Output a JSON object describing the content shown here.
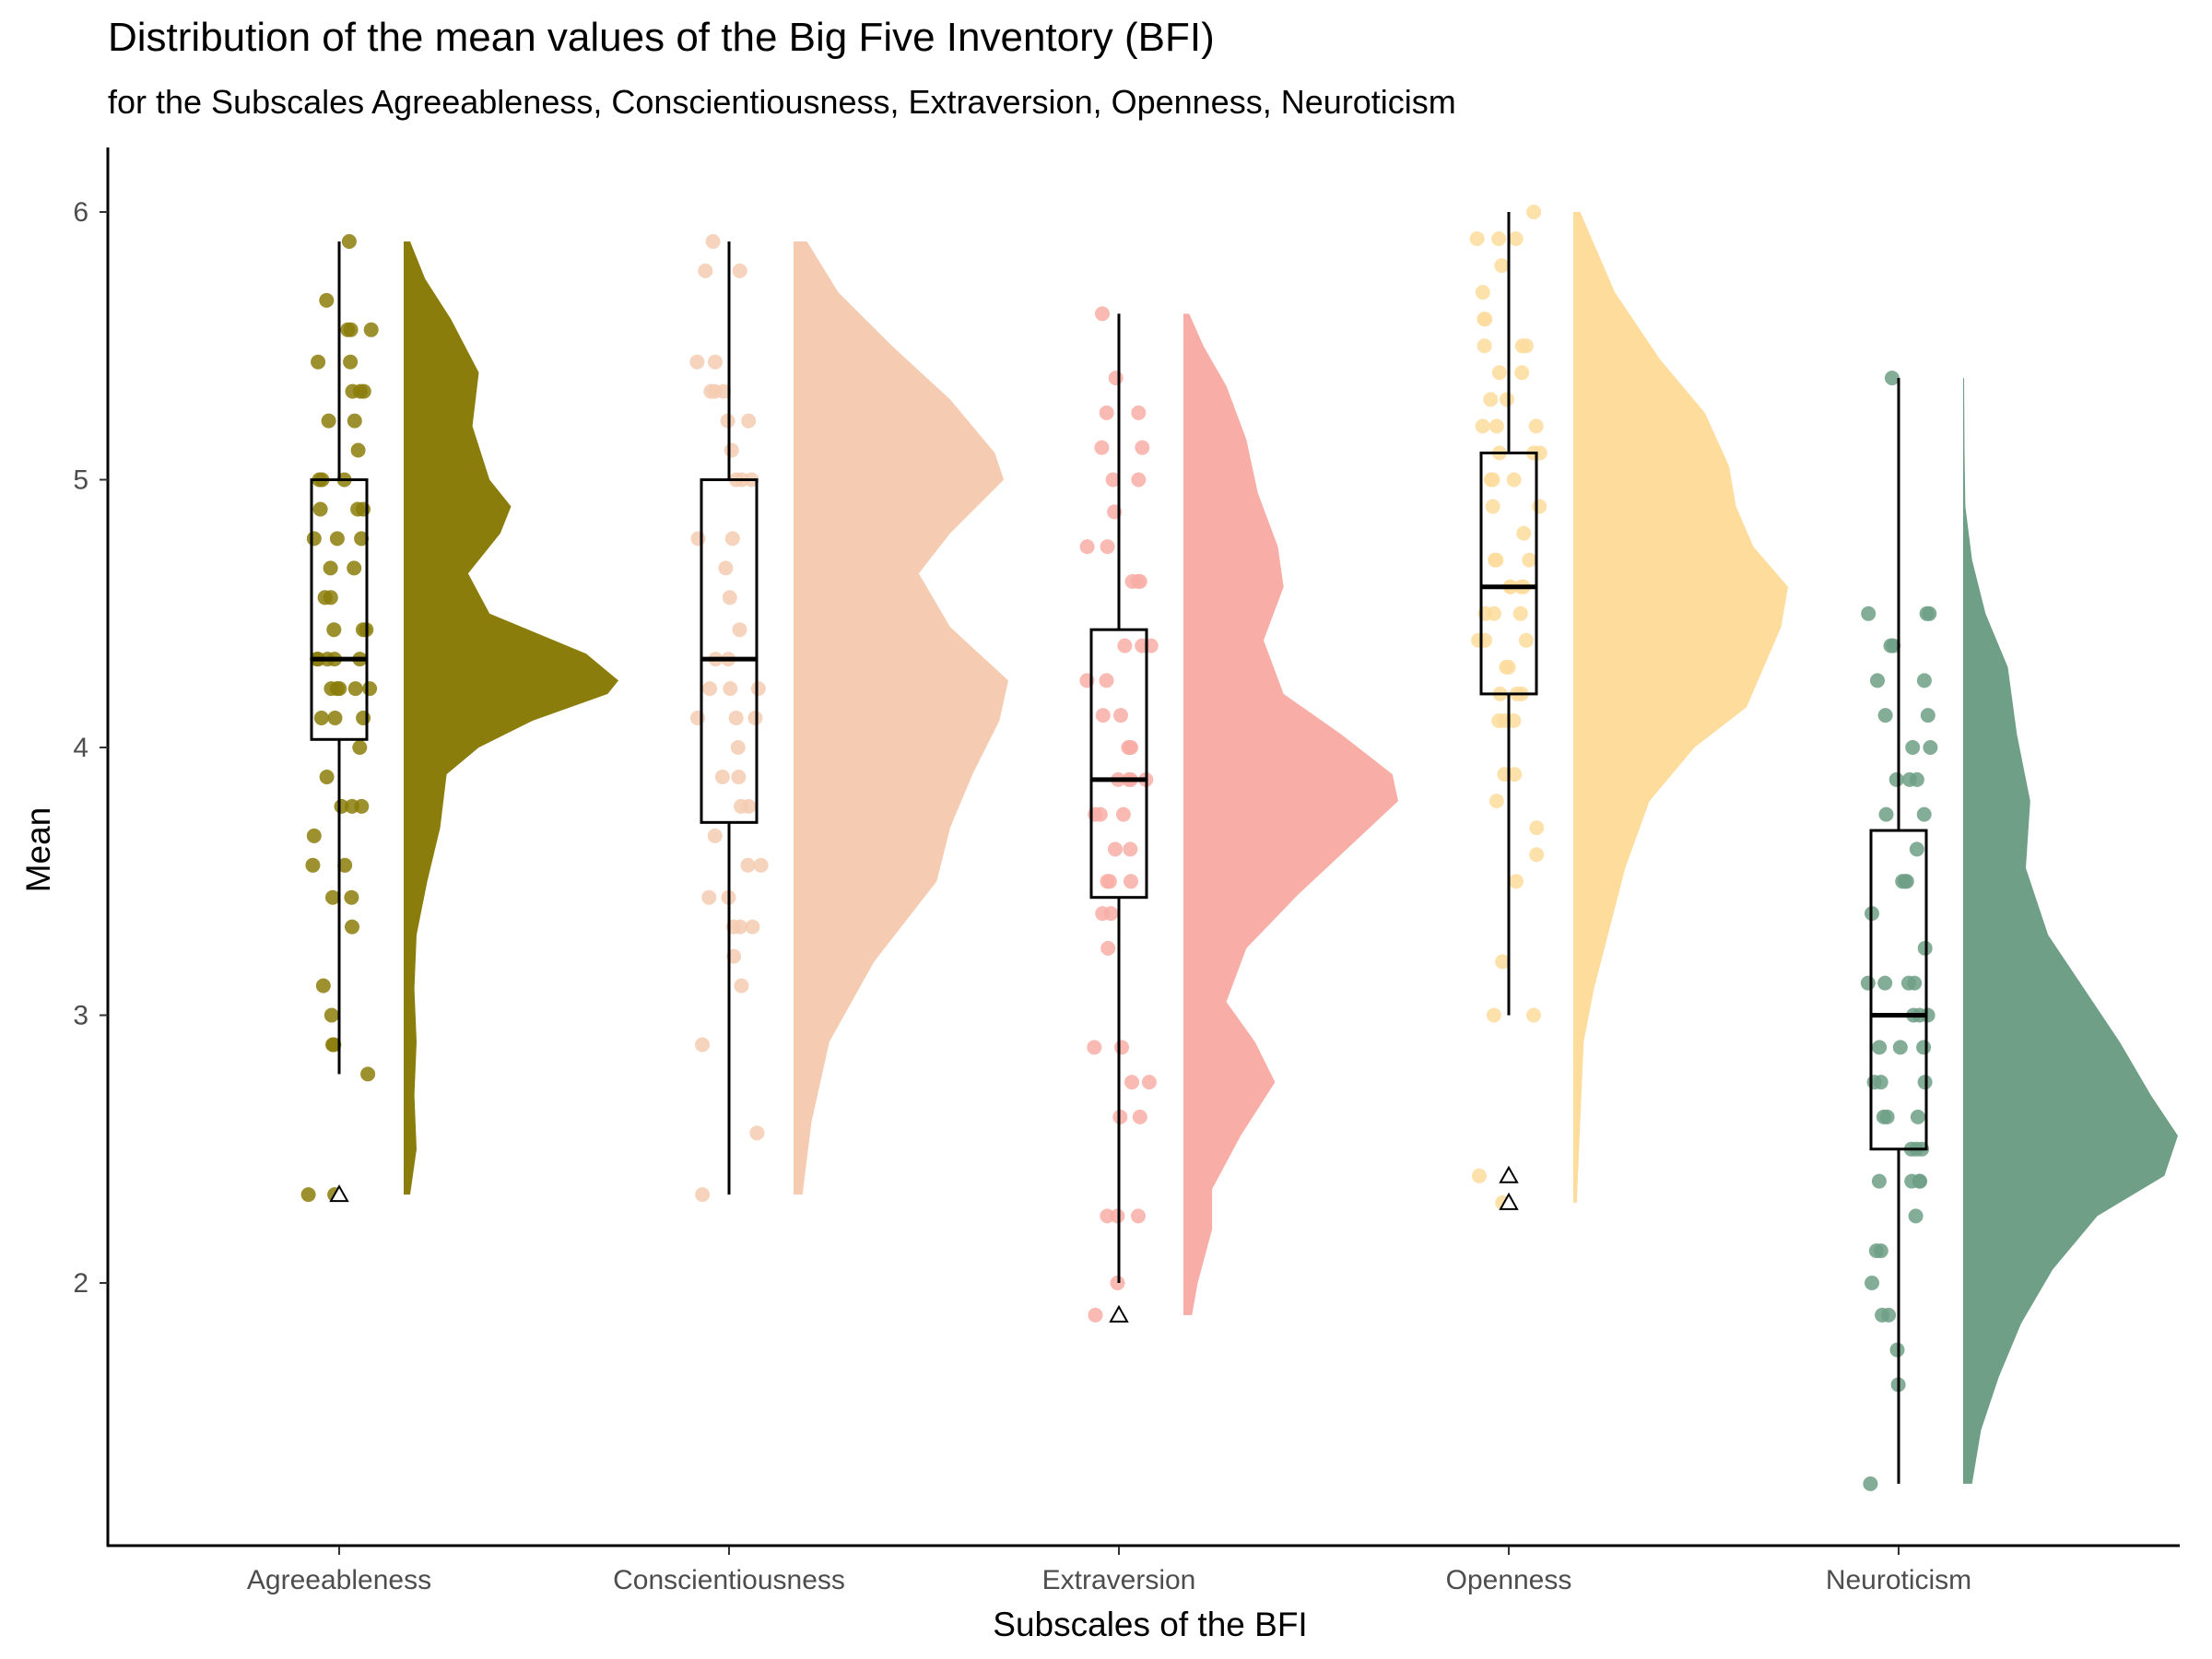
{
  "chart_data": {
    "type": "raincloud",
    "title": "Distribution of the mean values of the Big Five Inventory (BFI)",
    "subtitle": "for the Subscales Agreeableness, Conscientiousness, Extraversion, Openness, Neuroticism",
    "xlabel": "Subscales of the BFI",
    "ylabel": "Mean",
    "ylim": [
      1.0,
      6.2
    ],
    "yticks": [
      2,
      3,
      4,
      5,
      6
    ],
    "categories": [
      "Agreeableness",
      "Conscientiousness",
      "Extraversion",
      "Openness",
      "Neuroticism"
    ],
    "grid": false,
    "legend": "none",
    "series": [
      {
        "category": "Agreeableness",
        "color": "#8B7D0B",
        "box": {
          "min": 2.78,
          "q1": 4.03,
          "median": 4.33,
          "q3": 5.0,
          "max": 5.89
        },
        "outliers": [
          2.33
        ],
        "mean_marker": 2.33,
        "density_range": [
          2.33,
          5.89
        ],
        "density": [
          [
            2.33,
            0.03
          ],
          [
            2.5,
            0.06
          ],
          [
            2.7,
            0.05
          ],
          [
            2.9,
            0.06
          ],
          [
            3.1,
            0.05
          ],
          [
            3.3,
            0.06
          ],
          [
            3.5,
            0.11
          ],
          [
            3.7,
            0.17
          ],
          [
            3.9,
            0.2
          ],
          [
            4.0,
            0.35
          ],
          [
            4.1,
            0.6
          ],
          [
            4.2,
            0.95
          ],
          [
            4.25,
            1.0
          ],
          [
            4.35,
            0.85
          ],
          [
            4.5,
            0.4
          ],
          [
            4.65,
            0.3
          ],
          [
            4.8,
            0.45
          ],
          [
            4.9,
            0.5
          ],
          [
            5.0,
            0.4
          ],
          [
            5.2,
            0.32
          ],
          [
            5.4,
            0.35
          ],
          [
            5.6,
            0.22
          ],
          [
            5.75,
            0.1
          ],
          [
            5.89,
            0.03
          ]
        ],
        "points": [
          5.89,
          5.67,
          5.56,
          5.56,
          5.56,
          5.44,
          5.44,
          5.33,
          5.33,
          5.33,
          5.22,
          5.22,
          5.11,
          5.0,
          5.0,
          5.0,
          4.89,
          4.89,
          4.89,
          4.78,
          4.78,
          4.78,
          4.67,
          4.67,
          4.56,
          4.56,
          4.44,
          4.44,
          4.44,
          4.33,
          4.33,
          4.33,
          4.33,
          4.33,
          4.22,
          4.22,
          4.22,
          4.22,
          4.22,
          4.11,
          4.11,
          4.11,
          4.0,
          3.89,
          3.78,
          3.78,
          3.78,
          3.67,
          3.56,
          3.56,
          3.44,
          3.44,
          3.33,
          3.11,
          3.0,
          2.89,
          2.89,
          2.78,
          2.33,
          2.33
        ]
      },
      {
        "category": "Conscientiousness",
        "color": "#F5CBB2",
        "box": {
          "min": 2.33,
          "q1": 3.72,
          "median": 4.33,
          "q3": 5.0,
          "max": 5.89
        },
        "outliers": [],
        "mean_marker": null,
        "density_range": [
          2.33,
          5.89
        ],
        "density": [
          [
            2.33,
            0.02
          ],
          [
            2.6,
            0.04
          ],
          [
            2.9,
            0.08
          ],
          [
            3.2,
            0.18
          ],
          [
            3.5,
            0.32
          ],
          [
            3.7,
            0.35
          ],
          [
            3.9,
            0.4
          ],
          [
            4.1,
            0.46
          ],
          [
            4.25,
            0.48
          ],
          [
            4.45,
            0.35
          ],
          [
            4.65,
            0.28
          ],
          [
            4.8,
            0.35
          ],
          [
            5.0,
            0.47
          ],
          [
            5.1,
            0.45
          ],
          [
            5.3,
            0.35
          ],
          [
            5.5,
            0.22
          ],
          [
            5.7,
            0.1
          ],
          [
            5.89,
            0.03
          ]
        ],
        "points": [
          5.89,
          5.78,
          5.78,
          5.44,
          5.44,
          5.33,
          5.33,
          5.33,
          5.22,
          5.22,
          5.11,
          5.0,
          5.0,
          5.0,
          4.78,
          4.78,
          4.67,
          4.56,
          4.44,
          4.33,
          4.33,
          4.22,
          4.22,
          4.22,
          4.11,
          4.11,
          4.11,
          4.0,
          3.89,
          3.89,
          3.78,
          3.78,
          3.67,
          3.56,
          3.56,
          3.44,
          3.44,
          3.33,
          3.33,
          3.33,
          3.22,
          3.11,
          2.89,
          2.56,
          2.33
        ]
      },
      {
        "category": "Extraversion",
        "color": "#F8AEA6",
        "box": {
          "min": 2.0,
          "q1": 3.44,
          "median": 3.88,
          "q3": 4.44,
          "max": 5.62
        },
        "outliers": [
          1.88
        ],
        "mean_marker": 1.88,
        "density_range": [
          1.88,
          5.62
        ],
        "density": [
          [
            1.88,
            0.03
          ],
          [
            2.0,
            0.05
          ],
          [
            2.2,
            0.1
          ],
          [
            2.35,
            0.1
          ],
          [
            2.55,
            0.2
          ],
          [
            2.75,
            0.32
          ],
          [
            2.9,
            0.25
          ],
          [
            3.05,
            0.15
          ],
          [
            3.25,
            0.22
          ],
          [
            3.45,
            0.4
          ],
          [
            3.65,
            0.6
          ],
          [
            3.8,
            0.75
          ],
          [
            3.9,
            0.73
          ],
          [
            4.05,
            0.55
          ],
          [
            4.2,
            0.35
          ],
          [
            4.4,
            0.28
          ],
          [
            4.6,
            0.35
          ],
          [
            4.75,
            0.33
          ],
          [
            4.95,
            0.26
          ],
          [
            5.15,
            0.22
          ],
          [
            5.35,
            0.15
          ],
          [
            5.5,
            0.07
          ],
          [
            5.62,
            0.02
          ]
        ],
        "points": [
          5.62,
          5.38,
          5.25,
          5.25,
          5.12,
          5.12,
          5.0,
          5.0,
          4.88,
          4.75,
          4.75,
          4.62,
          4.62,
          4.62,
          4.38,
          4.38,
          4.38,
          4.25,
          4.25,
          4.12,
          4.12,
          4.0,
          4.0,
          4.0,
          3.88,
          3.88,
          3.88,
          3.88,
          3.75,
          3.75,
          3.75,
          3.62,
          3.62,
          3.5,
          3.5,
          3.5,
          3.38,
          3.38,
          3.25,
          2.88,
          2.88,
          2.75,
          2.75,
          2.62,
          2.62,
          2.25,
          2.25,
          2.25,
          2.0,
          1.88
        ]
      },
      {
        "category": "Openness",
        "color": "#FDDC9C",
        "box": {
          "min": 3.0,
          "q1": 4.2,
          "median": 4.6,
          "q3": 5.1,
          "max": 6.0
        },
        "outliers": [
          2.4,
          2.3
        ],
        "mean_marker": 2.4,
        "density_range": [
          2.3,
          6.0
        ],
        "density": [
          [
            2.3,
            0.01
          ],
          [
            2.6,
            0.02
          ],
          [
            2.9,
            0.03
          ],
          [
            3.1,
            0.06
          ],
          [
            3.3,
            0.1
          ],
          [
            3.55,
            0.15
          ],
          [
            3.8,
            0.22
          ],
          [
            4.0,
            0.35
          ],
          [
            4.15,
            0.5
          ],
          [
            4.3,
            0.55
          ],
          [
            4.45,
            0.6
          ],
          [
            4.6,
            0.62
          ],
          [
            4.75,
            0.52
          ],
          [
            4.9,
            0.47
          ],
          [
            5.05,
            0.45
          ],
          [
            5.25,
            0.38
          ],
          [
            5.45,
            0.25
          ],
          [
            5.7,
            0.12
          ],
          [
            6.0,
            0.02
          ]
        ],
        "points": [
          6.0,
          5.9,
          5.9,
          5.9,
          5.8,
          5.7,
          5.6,
          5.6,
          5.5,
          5.5,
          5.5,
          5.4,
          5.4,
          5.3,
          5.3,
          5.2,
          5.2,
          5.2,
          5.1,
          5.1,
          5.1,
          5.0,
          5.0,
          5.0,
          4.9,
          4.9,
          4.8,
          4.7,
          4.7,
          4.7,
          4.6,
          4.6,
          4.6,
          4.6,
          4.5,
          4.5,
          4.5,
          4.4,
          4.4,
          4.4,
          4.3,
          4.3,
          4.2,
          4.2,
          4.2,
          4.1,
          4.1,
          4.1,
          3.9,
          3.9,
          3.8,
          3.7,
          3.6,
          3.5,
          3.2,
          3.0,
          3.0,
          2.4,
          2.3
        ]
      },
      {
        "category": "Neuroticism",
        "color": "#6F9F86",
        "box": {
          "min": 1.25,
          "q1": 2.5,
          "median": 3.0,
          "q3": 3.69,
          "max": 5.38
        },
        "outliers": [],
        "mean_marker": null,
        "density_range": [
          1.25,
          5.38
        ],
        "density": [
          [
            1.25,
            0.02
          ],
          [
            1.45,
            0.04
          ],
          [
            1.65,
            0.08
          ],
          [
            1.85,
            0.13
          ],
          [
            2.05,
            0.2
          ],
          [
            2.25,
            0.3
          ],
          [
            2.4,
            0.45
          ],
          [
            2.55,
            0.48
          ],
          [
            2.7,
            0.42
          ],
          [
            2.9,
            0.35
          ],
          [
            3.1,
            0.27
          ],
          [
            3.3,
            0.19
          ],
          [
            3.55,
            0.14
          ],
          [
            3.8,
            0.15
          ],
          [
            4.05,
            0.12
          ],
          [
            4.3,
            0.1
          ],
          [
            4.5,
            0.05
          ],
          [
            4.7,
            0.02
          ],
          [
            4.9,
            0.005
          ],
          [
            5.1,
            0.003
          ],
          [
            5.38,
            0.002
          ]
        ],
        "points": [
          5.38,
          4.5,
          4.5,
          4.5,
          4.38,
          4.38,
          4.25,
          4.25,
          4.12,
          4.12,
          4.0,
          4.0,
          3.88,
          3.88,
          3.88,
          3.75,
          3.75,
          3.62,
          3.5,
          3.5,
          3.5,
          3.38,
          3.25,
          3.12,
          3.12,
          3.12,
          3.12,
          3.0,
          3.0,
          3.0,
          2.88,
          2.88,
          2.88,
          2.75,
          2.75,
          2.75,
          2.62,
          2.62,
          2.62,
          2.5,
          2.5,
          2.5,
          2.38,
          2.38,
          2.38,
          2.38,
          2.25,
          2.12,
          2.12,
          2.0,
          1.88,
          1.88,
          1.75,
          1.62,
          1.25
        ]
      }
    ]
  }
}
